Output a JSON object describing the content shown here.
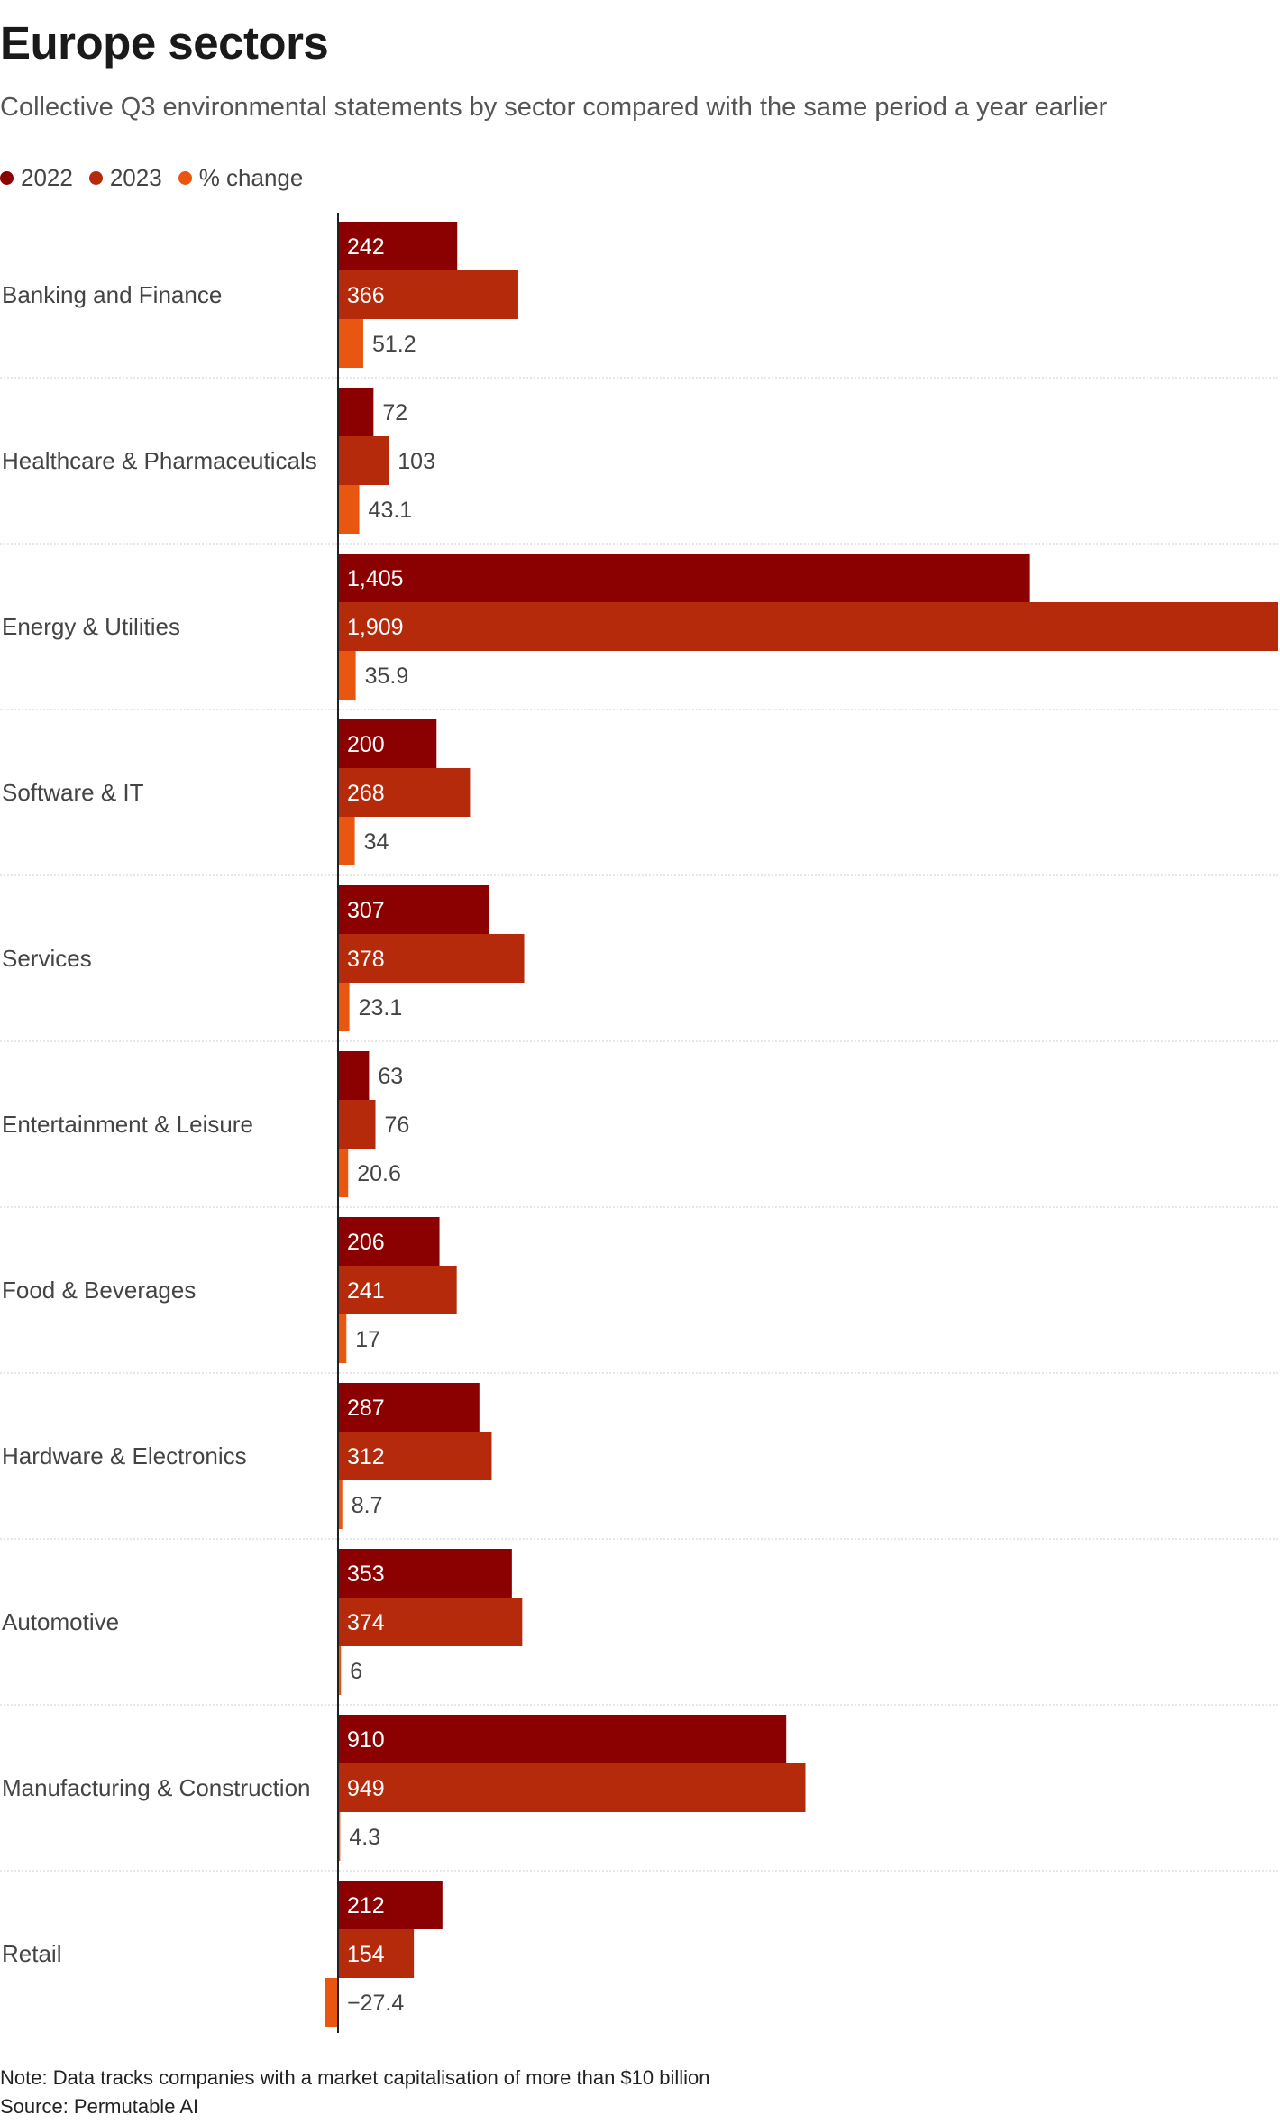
{
  "title": "Europe sectors",
  "subtitle": "Collective Q3 environmental statements by sector compared with the same period a year earlier",
  "legend": [
    {
      "label": "2022",
      "color": "#8b0000"
    },
    {
      "label": "2023",
      "color": "#b52a0a"
    },
    {
      "label": "% change",
      "color": "#e8560f"
    }
  ],
  "note": "Note: Data tracks companies with a market capitalisation of more than $10 billion",
  "source": "Source: Permutable AI",
  "chart_data": {
    "type": "bar",
    "orientation": "horizontal",
    "categories": [
      "Banking and Finance",
      "Healthcare & Pharmaceuticals",
      "Energy & Utilities",
      "Software & IT",
      "Services",
      "Entertainment & Leisure",
      "Food & Beverages",
      "Hardware & Electronics",
      "Automotive",
      "Manufacturing & Construction",
      "Retail"
    ],
    "series": [
      {
        "name": "2022",
        "color": "#8b0000",
        "values": [
          242,
          72,
          1405,
          200,
          307,
          63,
          206,
          287,
          353,
          910,
          212
        ],
        "labels": [
          "242",
          "72",
          "1,405",
          "200",
          "307",
          "63",
          "206",
          "287",
          "353",
          "910",
          "212"
        ]
      },
      {
        "name": "2023",
        "color": "#b52a0a",
        "values": [
          366,
          103,
          1909,
          268,
          378,
          76,
          241,
          312,
          374,
          949,
          154
        ],
        "labels": [
          "366",
          "103",
          "1,909",
          "268",
          "378",
          "76",
          "241",
          "312",
          "374",
          "949",
          "154"
        ]
      },
      {
        "name": "% change",
        "color": "#e8560f",
        "values": [
          51.2,
          43.1,
          35.9,
          34,
          23.1,
          20.6,
          17,
          8.7,
          6,
          4.3,
          -27.4
        ],
        "labels": [
          "51.2",
          "43.1",
          "35.9",
          "34",
          "23.1",
          "20.6",
          "17",
          "8.7",
          "6",
          "4.3",
          "−27.4"
        ]
      }
    ],
    "xlim": [
      -27.4,
      1909
    ],
    "grid": false,
    "legend_position": "top-left"
  }
}
